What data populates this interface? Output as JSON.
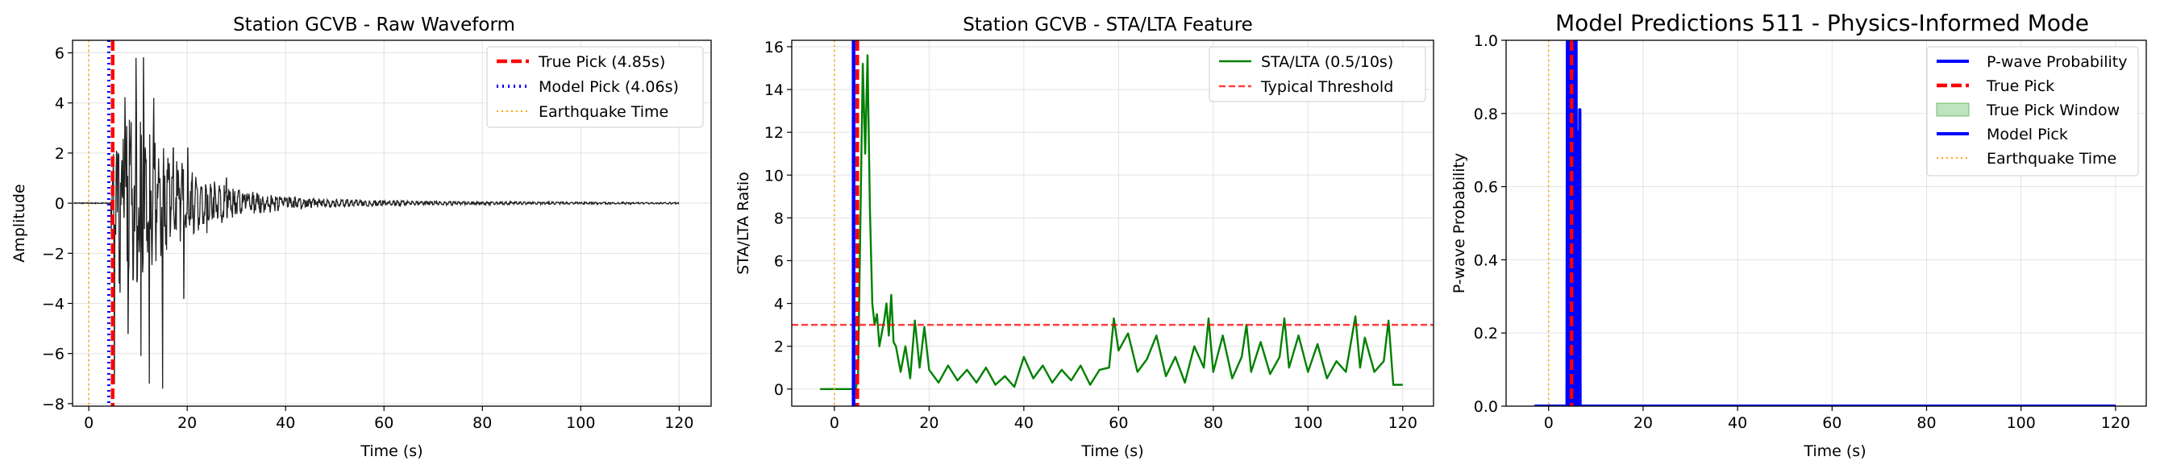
{
  "chart_data": [
    {
      "type": "line",
      "title": "Station GCVB - Raw Waveform",
      "xlabel": "Time (s)",
      "ylabel": "Amplitude",
      "xlim": [
        -3.3,
        126.5
      ],
      "ylim": [
        -8.1,
        6.5
      ],
      "xticks": [
        0,
        20,
        40,
        60,
        80,
        100,
        120
      ],
      "yticks": [
        -8,
        -6,
        -4,
        -2,
        0,
        2,
        4,
        6
      ],
      "grid": true,
      "legend_position": "upper-right",
      "waveform": {
        "color": "#222222",
        "t_start": -3.0,
        "t_end": 120.0,
        "onset_s": 4.5,
        "peaks": [
          {
            "t": 5.2,
            "v": -7.2
          },
          {
            "t": 8.0,
            "v": -5.2
          },
          {
            "t": 9.6,
            "v": 5.8
          },
          {
            "t": 10.6,
            "v": -6.1
          },
          {
            "t": 11.1,
            "v": 5.8
          },
          {
            "t": 12.3,
            "v": -7.2
          },
          {
            "t": 13.2,
            "v": 4.2
          },
          {
            "t": 15.0,
            "v": -7.4
          },
          {
            "t": 17.2,
            "v": 2.2
          },
          {
            "t": 19.3,
            "v": -3.8
          },
          {
            "t": 20.1,
            "v": 2.2
          },
          {
            "t": 24.0,
            "v": -1.2
          },
          {
            "t": 28.0,
            "v": 1.0
          }
        ]
      },
      "vlines": [
        {
          "name": "True Pick (4.85s)",
          "x": 4.85,
          "color": "#ff0000",
          "style": "dashed"
        },
        {
          "name": "Model Pick (4.06s)",
          "x": 4.06,
          "color": "#0000ff",
          "style": "dotted"
        },
        {
          "name": "Earthquake Time",
          "x": 0.0,
          "color": "#ffa500",
          "style": "dotted-thin"
        }
      ]
    },
    {
      "type": "line",
      "title": "Station GCVB - STA/LTA Feature",
      "xlabel": "Time (s)",
      "ylabel": "STA/LTA Ratio",
      "xlim": [
        -9.0,
        126.5
      ],
      "ylim": [
        -0.8,
        16.3
      ],
      "xticks": [
        0,
        20,
        40,
        60,
        80,
        100,
        120
      ],
      "yticks": [
        0,
        2,
        4,
        6,
        8,
        10,
        12,
        14,
        16
      ],
      "grid": true,
      "legend_position": "upper-right",
      "series": [
        {
          "name": "STA/LTA (0.5/10s)",
          "color": "#008000",
          "x": [
            -3,
            4.5,
            5.0,
            6.0,
            6.5,
            7.0,
            7.5,
            8.0,
            8.5,
            9.0,
            9.5,
            10.0,
            10.5,
            11.0,
            11.5,
            12.0,
            12.5,
            13.0,
            14.0,
            15.0,
            16.0,
            17.0,
            18.0,
            19.0,
            20.0,
            22.0,
            24.0,
            26.0,
            28.0,
            30.0,
            32.0,
            34.0,
            36.0,
            38.0,
            40.0,
            42.0,
            44.0,
            46.0,
            48.0,
            50.0,
            52.0,
            54.0,
            56.0,
            58.0,
            59.0,
            60.0,
            62.0,
            64.0,
            66.0,
            68.0,
            70.0,
            72.0,
            74.0,
            76.0,
            78.0,
            79.0,
            80.0,
            82.0,
            84.0,
            86.0,
            87.0,
            88.0,
            90.0,
            92.0,
            94.0,
            95.0,
            96.0,
            98.0,
            100.0,
            102.0,
            104.0,
            106.0,
            108.0,
            110.0,
            111.0,
            112.0,
            114.0,
            116.0,
            117.0,
            118.0,
            120.0
          ],
          "y": [
            0.0,
            0.0,
            0.5,
            15.2,
            11.0,
            15.6,
            8.5,
            4.0,
            3.0,
            3.5,
            2.0,
            2.6,
            3.2,
            4.0,
            2.5,
            4.4,
            2.2,
            2.0,
            0.8,
            2.0,
            0.5,
            3.2,
            1.0,
            2.9,
            0.9,
            0.3,
            1.1,
            0.4,
            0.9,
            0.3,
            1.0,
            0.2,
            0.6,
            0.1,
            1.5,
            0.5,
            1.1,
            0.3,
            0.9,
            0.4,
            1.1,
            0.2,
            0.9,
            1.0,
            3.3,
            1.8,
            2.6,
            0.8,
            1.4,
            2.5,
            0.6,
            1.5,
            0.3,
            2.0,
            1.0,
            3.3,
            0.8,
            2.5,
            0.5,
            1.5,
            3.0,
            0.8,
            2.2,
            0.7,
            1.5,
            3.3,
            1.0,
            2.5,
            0.8,
            2.1,
            0.5,
            1.3,
            0.8,
            3.4,
            1.0,
            2.4,
            0.8,
            1.3,
            3.2,
            0.2,
            0.2
          ]
        }
      ],
      "hlines": [
        {
          "name": "Typical Threshold",
          "y": 3.0,
          "color": "#ff0000",
          "style": "dashed"
        }
      ],
      "vlines": [
        {
          "name": "True Pick",
          "x": 4.85,
          "color": "#ff0000",
          "style": "dashed"
        },
        {
          "name": "Model Pick",
          "x": 4.06,
          "color": "#0000ff",
          "style": "solid"
        },
        {
          "name": "Earthquake Time",
          "x": 0.0,
          "color": "#ffa500",
          "style": "dotted-thin"
        }
      ]
    },
    {
      "type": "line",
      "title": "Model Predictions 511 - Physics-Informed Mode",
      "xlabel": "Time (s)",
      "ylabel": "P-wave Probability",
      "xlim": [
        -9.0,
        126.5
      ],
      "ylim": [
        0.0,
        1.0
      ],
      "xticks": [
        0,
        20,
        40,
        60,
        80,
        100,
        120
      ],
      "yticks": [
        0.0,
        0.2,
        0.4,
        0.6,
        0.8,
        1.0
      ],
      "grid": true,
      "legend_position": "upper-right",
      "series": [
        {
          "name": "P-wave Probability",
          "color": "#0000ff",
          "x": [
            -3,
            3.9,
            4.0,
            4.1,
            4.2,
            4.3,
            4.4,
            4.5,
            4.6,
            4.7,
            4.8,
            4.9,
            5.0,
            5.1,
            5.2,
            5.3,
            5.4,
            5.5,
            5.6,
            5.7,
            5.8,
            5.9,
            6.0,
            6.05,
            6.1,
            6.2,
            6.3,
            6.35,
            6.4,
            6.5,
            6.6,
            6.65,
            6.7,
            6.8,
            7.0,
            120
          ],
          "y": [
            0.0,
            0.0,
            1.0,
            0.0,
            1.0,
            0.0,
            1.0,
            0.0,
            1.0,
            0.0,
            1.0,
            0.0,
            1.0,
            0.0,
            1.0,
            0.0,
            1.0,
            0.0,
            1.0,
            0.0,
            1.0,
            0.0,
            0.75,
            0.0,
            0.0,
            0.55,
            0.0,
            0.0,
            0.0,
            0.0,
            0.81,
            0.0,
            0.0,
            0.0,
            0.0,
            0.0
          ]
        }
      ],
      "true_pick_window": {
        "name": "True Pick Window",
        "x0": 4.35,
        "x1": 5.35,
        "color": "#2ca02c"
      },
      "vlines": [
        {
          "name": "True Pick",
          "x": 4.85,
          "color": "#ff0000",
          "style": "dashed"
        },
        {
          "name": "Model Pick",
          "x": 4.06,
          "color": "#0000ff",
          "style": "solid"
        },
        {
          "name": "Earthquake Time",
          "x": 0.0,
          "color": "#ffa500",
          "style": "dotted-thin"
        }
      ]
    }
  ]
}
